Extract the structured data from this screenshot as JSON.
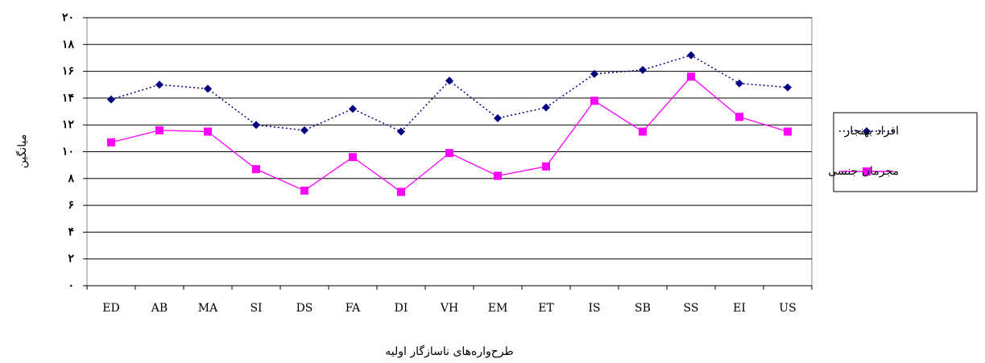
{
  "chart_data": {
    "type": "line",
    "y_label": "میانگین",
    "x_label": "طرح‌واره‌های ناسازگار اولیه",
    "categories": [
      "ED",
      "AB",
      "MA",
      "SI",
      "DS",
      "FA",
      "DI",
      "VH",
      "EM",
      "ET",
      "IS",
      "SB",
      "SS",
      "EI",
      "US"
    ],
    "series": [
      {
        "name": "افراد بهنجار",
        "color": "#000080",
        "marker": "diamond",
        "dash": true,
        "values": [
          13.9,
          15.0,
          14.7,
          12.0,
          11.6,
          13.2,
          11.5,
          15.3,
          12.5,
          13.3,
          15.8,
          16.1,
          17.2,
          15.1,
          14.8
        ]
      },
      {
        "name": "مجرمان جنسی",
        "color": "#ff00ff",
        "marker": "square",
        "dash": false,
        "values": [
          10.7,
          11.6,
          11.5,
          8.7,
          7.1,
          9.6,
          7.0,
          9.9,
          8.2,
          8.9,
          13.8,
          11.5,
          15.6,
          12.6,
          11.5
        ]
      }
    ],
    "ylim": [
      0,
      20
    ],
    "yticks": [
      {
        "value": 0,
        "label": "۰"
      },
      {
        "value": 2,
        "label": "۲"
      },
      {
        "value": 4,
        "label": "۴"
      },
      {
        "value": 6,
        "label": "۶"
      },
      {
        "value": 8,
        "label": "۸"
      },
      {
        "value": 10,
        "label": "۱۰"
      },
      {
        "value": 12,
        "label": "۱۲"
      },
      {
        "value": 14,
        "label": "۱۴"
      },
      {
        "value": 16,
        "label": "۱۶"
      },
      {
        "value": 18,
        "label": "۱۸"
      },
      {
        "value": 20,
        "label": "۲۰"
      }
    ],
    "grid": true,
    "legend": "right"
  }
}
